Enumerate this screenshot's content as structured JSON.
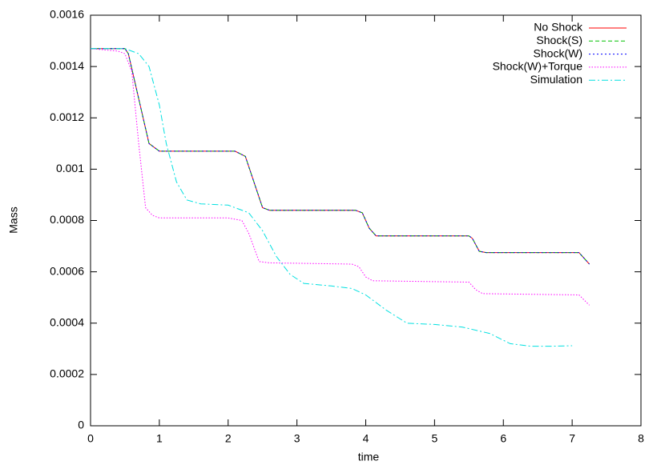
{
  "chart_data": {
    "type": "line",
    "x_label": "time",
    "y_label": "Mass",
    "xlim": [
      0,
      8
    ],
    "xticks": [
      0,
      1,
      2,
      3,
      4,
      5,
      6,
      7,
      8
    ],
    "ylim": [
      0,
      0.0016
    ],
    "yticks": [
      0,
      0.0002,
      0.0004,
      0.0006,
      0.0008,
      0.001,
      0.0012,
      0.0014,
      0.0016
    ],
    "grid": false,
    "legend": "top-right",
    "series": [
      {
        "name": "No Shock",
        "color": "#ff0000",
        "x": [
          0,
          0.5,
          0.55,
          0.85,
          1.0,
          2.1,
          2.25,
          2.5,
          2.6,
          3.85,
          3.95,
          4.05,
          4.15,
          5.5,
          5.55,
          5.65,
          5.75,
          7.1,
          7.25
        ],
        "values": [
          0.00147,
          0.00147,
          0.00145,
          0.0011,
          0.00107,
          0.00107,
          0.00105,
          0.00085,
          0.00084,
          0.00084,
          0.00083,
          0.00077,
          0.00074,
          0.00074,
          0.00073,
          0.00068,
          0.000675,
          0.000675,
          0.00063
        ]
      },
      {
        "name": "Shock(S)",
        "color": "#00c000",
        "x": [
          0,
          0.5,
          0.55,
          0.85,
          1.0,
          2.1,
          2.25,
          2.5,
          2.6,
          3.85,
          3.95,
          4.05,
          4.15,
          5.5,
          5.55,
          5.65,
          5.75,
          7.1,
          7.25
        ],
        "values": [
          0.00147,
          0.00147,
          0.00145,
          0.0011,
          0.00107,
          0.00107,
          0.00105,
          0.00085,
          0.00084,
          0.00084,
          0.00083,
          0.00077,
          0.00074,
          0.00074,
          0.00073,
          0.00068,
          0.000675,
          0.000675,
          0.00063
        ]
      },
      {
        "name": "Shock(W)",
        "color": "#0000ff",
        "x": [
          0,
          0.5,
          0.55,
          0.85,
          1.0,
          2.1,
          2.25,
          2.5,
          2.6,
          3.85,
          3.95,
          4.05,
          4.15,
          5.5,
          5.55,
          5.65,
          5.75,
          7.1,
          7.25
        ],
        "values": [
          0.00147,
          0.00147,
          0.00145,
          0.0011,
          0.00107,
          0.00107,
          0.00105,
          0.00085,
          0.00084,
          0.00084,
          0.00083,
          0.00077,
          0.00074,
          0.00074,
          0.00073,
          0.00068,
          0.000675,
          0.000675,
          0.00063
        ]
      },
      {
        "name": "Shock(W)+Torque",
        "color": "#ff00ff",
        "x": [
          0,
          0.4,
          0.5,
          0.6,
          0.7,
          0.8,
          0.9,
          1.0,
          2.0,
          2.2,
          2.3,
          2.45,
          2.6,
          3.8,
          3.9,
          4.0,
          4.1,
          5.5,
          5.6,
          5.7,
          7.1,
          7.25
        ],
        "values": [
          0.00147,
          0.00146,
          0.00145,
          0.00138,
          0.0011,
          0.00085,
          0.00082,
          0.00081,
          0.00081,
          0.0008,
          0.00075,
          0.00064,
          0.000635,
          0.00063,
          0.00062,
          0.00058,
          0.000565,
          0.00056,
          0.00053,
          0.000515,
          0.00051,
          0.00047
        ]
      },
      {
        "name": "Simulation",
        "color": "#00e0e0",
        "x": [
          0,
          0.5,
          0.7,
          0.85,
          1.0,
          1.1,
          1.25,
          1.4,
          1.6,
          2.0,
          2.3,
          2.5,
          2.7,
          2.9,
          3.1,
          3.5,
          3.8,
          4.0,
          4.3,
          4.6,
          5.0,
          5.4,
          5.8,
          6.1,
          6.4,
          6.7,
          7.0
        ],
        "values": [
          0.00147,
          0.00147,
          0.00145,
          0.0014,
          0.00125,
          0.0011,
          0.00095,
          0.00088,
          0.000865,
          0.00086,
          0.00083,
          0.00076,
          0.00066,
          0.00059,
          0.000555,
          0.000545,
          0.000535,
          0.00051,
          0.00045,
          0.0004,
          0.000395,
          0.000385,
          0.00036,
          0.00032,
          0.00031,
          0.00031,
          0.000312
        ]
      }
    ]
  }
}
